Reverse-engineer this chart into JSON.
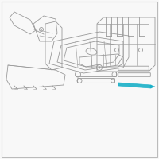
{
  "bg_color": "#f8f8f8",
  "border_color": "#bbbbbb",
  "line_color": "#999999",
  "dark_line": "#777777",
  "highlight_color": "#1ab0c8",
  "figsize": [
    2.0,
    2.0
  ],
  "dpi": 100
}
